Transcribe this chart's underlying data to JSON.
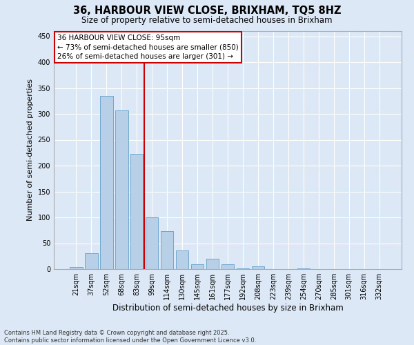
{
  "title_line1": "36, HARBOUR VIEW CLOSE, BRIXHAM, TQ5 8HZ",
  "title_line2": "Size of property relative to semi-detached houses in Brixham",
  "xlabel": "Distribution of semi-detached houses by size in Brixham",
  "ylabel": "Number of semi-detached properties",
  "categories": [
    "21sqm",
    "37sqm",
    "52sqm",
    "68sqm",
    "83sqm",
    "99sqm",
    "114sqm",
    "130sqm",
    "145sqm",
    "161sqm",
    "177sqm",
    "192sqm",
    "208sqm",
    "223sqm",
    "239sqm",
    "254sqm",
    "270sqm",
    "285sqm",
    "301sqm",
    "316sqm",
    "332sqm"
  ],
  "values": [
    4,
    31,
    335,
    307,
    223,
    100,
    73,
    36,
    10,
    20,
    10,
    1,
    5,
    0,
    0,
    1,
    0,
    0,
    0,
    0,
    0
  ],
  "bar_color": "#b8cfe8",
  "bar_edge_color": "#6fa8d0",
  "vline_color": "#cc0000",
  "annotation_title": "36 HARBOUR VIEW CLOSE: 95sqm",
  "annotation_line2": "← 73% of semi-detached houses are smaller (850)",
  "annotation_line3": "26% of semi-detached houses are larger (301) →",
  "annotation_box_color": "#cc0000",
  "ylim": [
    0,
    460
  ],
  "yticks": [
    0,
    50,
    100,
    150,
    200,
    250,
    300,
    350,
    400,
    450
  ],
  "bg_color": "#dce8f5",
  "grid_color": "#ffffff",
  "footnote_line1": "Contains HM Land Registry data © Crown copyright and database right 2025.",
  "footnote_line2": "Contains public sector information licensed under the Open Government Licence v3.0."
}
